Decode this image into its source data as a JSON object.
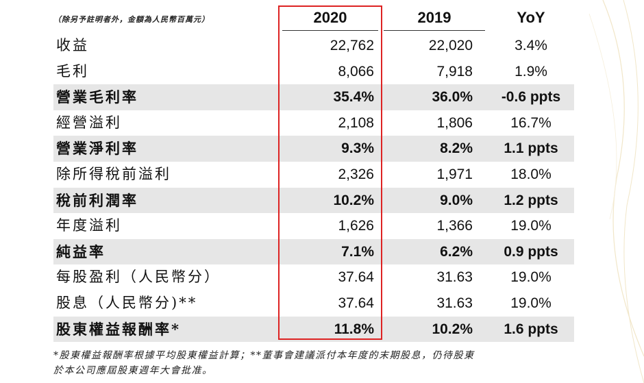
{
  "note": "（除另予註明者外，金額為人民幣百萬元）",
  "columns": {
    "c2020": "2020",
    "c2019": "2019",
    "yoy": "YoY"
  },
  "rows": [
    {
      "label": "收益",
      "v2020": "22,762",
      "v2019": "22,020",
      "yoy": "3.4%",
      "emphasis": false
    },
    {
      "label": "毛利",
      "v2020": "8,066",
      "v2019": "7,918",
      "yoy": "1.9%",
      "emphasis": false
    },
    {
      "label": "營業毛利率",
      "v2020": "35.4%",
      "v2019": "36.0%",
      "yoy": "-0.6 ppts",
      "emphasis": true
    },
    {
      "label": "經營溢利",
      "v2020": "2,108",
      "v2019": "1,806",
      "yoy": "16.7%",
      "emphasis": false
    },
    {
      "label": "營業淨利率",
      "v2020": "9.3%",
      "v2019": "8.2%",
      "yoy": "1.1 ppts",
      "emphasis": true
    },
    {
      "label": "除所得稅前溢利",
      "v2020": "2,326",
      "v2019": "1,971",
      "yoy": "18.0%",
      "emphasis": false
    },
    {
      "label": "稅前利潤率",
      "v2020": "10.2%",
      "v2019": "9.0%",
      "yoy": "1.2 ppts",
      "emphasis": true
    },
    {
      "label": "年度溢利",
      "v2020": "1,626",
      "v2019": "1,366",
      "yoy": "19.0%",
      "emphasis": false
    },
    {
      "label": "純益率",
      "v2020": "7.1%",
      "v2019": "6.2%",
      "yoy": "0.9 ppts",
      "emphasis": true
    },
    {
      "label": "每股盈利（人民幣分）",
      "v2020": "37.64",
      "v2019": "31.63",
      "yoy": "19.0%",
      "emphasis": false
    },
    {
      "label": "股息（人民幣分)**",
      "v2020": "37.64",
      "v2019": "31.63",
      "yoy": "19.0%",
      "emphasis": false
    },
    {
      "label": "股東權益報酬率*",
      "v2020": "11.8%",
      "v2019": "10.2%",
      "yoy": "1.6 ppts",
      "emphasis": true
    }
  ],
  "footnote": {
    "line1": "*股東權益報酬率根據平均股東權益計算；**董事會建議派付本年度的末期股息，仍待股東",
    "line2": "於本公司應屆股東週年大會批准。"
  },
  "colors": {
    "highlight_border": "#d22222",
    "shade": "#e6e6e6"
  }
}
